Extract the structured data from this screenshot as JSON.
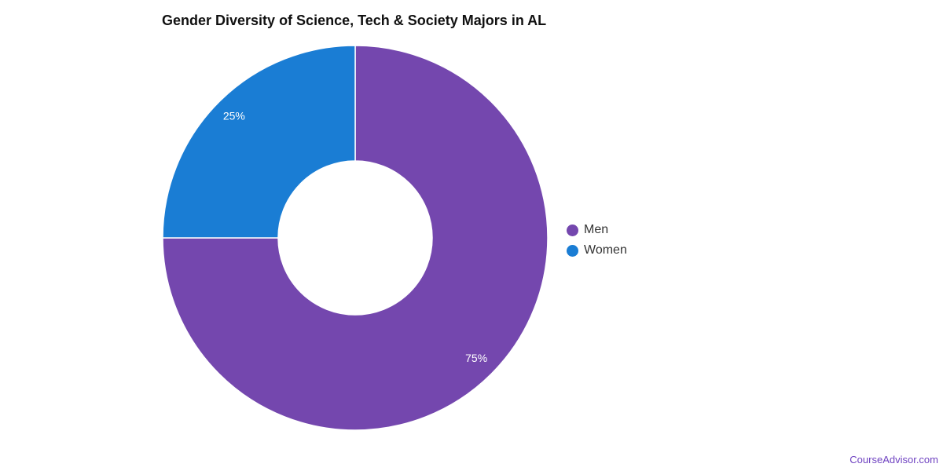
{
  "chart_data": {
    "type": "pie",
    "title": "Gender Diversity of Science, Tech & Society Majors in AL",
    "variant": "donut",
    "categories": [
      "Men",
      "Women"
    ],
    "values": [
      75,
      25
    ],
    "data_labels": [
      "75%",
      "25%"
    ],
    "colors": [
      "#7447ae",
      "#1a7dd4"
    ],
    "legend_position": "right"
  },
  "footer": {
    "source": "CourseAdvisor.com"
  },
  "colors": {
    "men": "#7447ae",
    "women": "#1a7dd4",
    "source_text": "#6f42c1"
  }
}
